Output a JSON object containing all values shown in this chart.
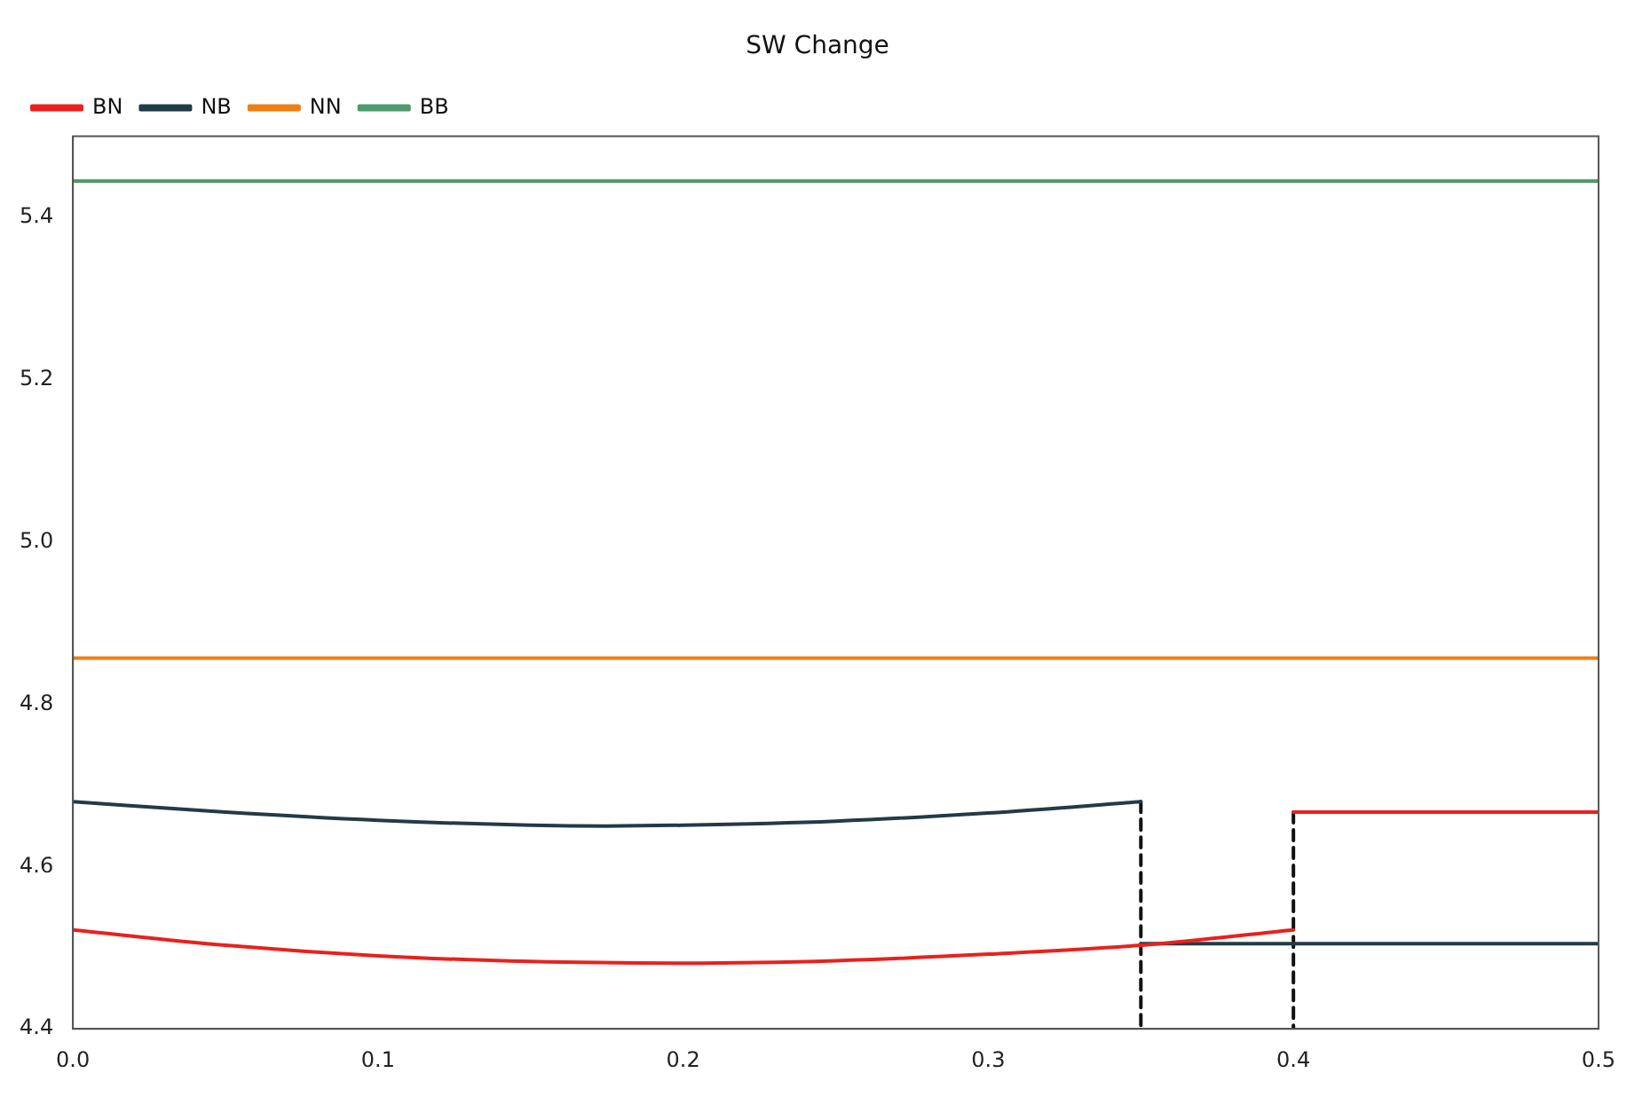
{
  "chart_data": {
    "type": "line",
    "title": "SW Change",
    "xlim": [
      0,
      0.5
    ],
    "xticks": [
      {
        "value": 0,
        "label": "0.0"
      },
      0.1,
      0.2,
      0.3,
      0.4,
      0.5
    ],
    "ylim": [
      4.4,
      5.5
    ],
    "yticks": [
      4.4,
      4.6,
      4.8,
      {
        "value": 5,
        "label": "5.0"
      },
      5.2,
      5.4
    ],
    "grid": false,
    "legend": "top left",
    "marker": "none",
    "series": [
      {
        "name": "BN",
        "color": "#e8211d",
        "x": [
          0,
          0.05,
          0.1,
          0.15,
          0.2,
          0.25,
          0.3,
          0.35,
          0.4,
          null,
          0.4,
          0.5
        ],
        "values": [
          4.522,
          4.503,
          4.49,
          4.483,
          4.481,
          4.484,
          4.492,
          4.503,
          4.522,
          null,
          4.667,
          4.667
        ]
      },
      {
        "name": "NB",
        "color": "#233a47",
        "x": [
          0,
          0.05,
          0.1,
          0.15,
          0.175,
          0.2,
          0.25,
          0.3,
          0.35,
          null,
          0.35,
          0.5
        ],
        "values": [
          4.68,
          4.667,
          4.657,
          4.651,
          4.65,
          4.651,
          4.656,
          4.666,
          4.68,
          null,
          4.505,
          4.505
        ]
      },
      {
        "name": "NN",
        "color": "#ee7f14",
        "x": [
          0,
          0.5
        ],
        "values": [
          4.857,
          4.857
        ]
      },
      {
        "name": "BB",
        "color": "#4e9a6c",
        "x": [
          0,
          0.5
        ],
        "values": [
          5.445,
          5.445
        ]
      },
      {
        "type": "line",
        "color": "#111111",
        "line_style": "dashed",
        "x": [
          0.35,
          0.35
        ],
        "values": [
          4.68,
          4.4
        ]
      },
      {
        "type": "line",
        "color": "#111111",
        "line_style": "dashed",
        "x": [
          0.4,
          0.4
        ],
        "values": [
          4.667,
          4.4
        ]
      }
    ]
  }
}
